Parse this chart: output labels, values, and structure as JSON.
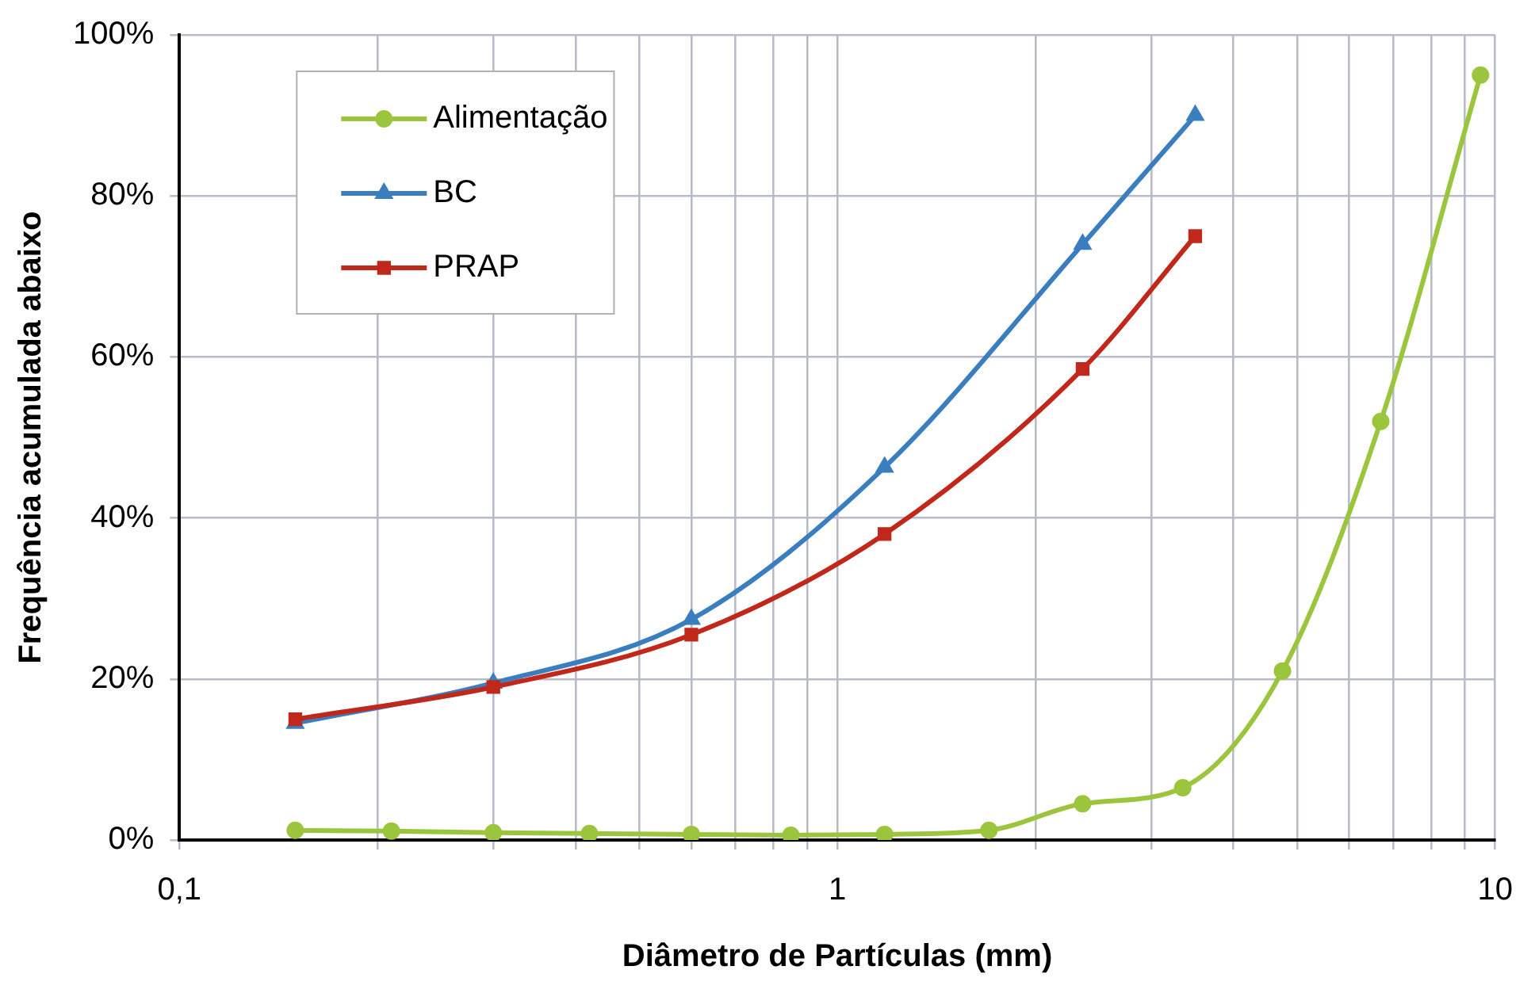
{
  "chart_data": {
    "type": "line",
    "xlabel": "Diâmetro de Partículas (mm)",
    "ylabel": "Frequência acumulada abaixo",
    "x": [
      0.15,
      0.21,
      0.3,
      0.42,
      0.6,
      0.85,
      1.18,
      1.7,
      2.36,
      3.35,
      4.75,
      6.7,
      9.5
    ],
    "series": [
      {
        "name": "Alimentação",
        "color": "#9bc53d",
        "marker": "circle",
        "values": [
          1.2,
          1.1,
          0.9,
          0.8,
          0.7,
          0.6,
          0.7,
          1.2,
          4.5,
          6.5,
          21,
          52,
          95
        ]
      },
      {
        "name": "BC",
        "color": "#3a7ebf",
        "marker": "triangle",
        "x": [
          0.15,
          0.3,
          0.6,
          1.18,
          2.36,
          3.5
        ],
        "values": [
          14.5,
          19.5,
          27.4,
          46.3,
          74,
          90
        ]
      },
      {
        "name": "PRAP",
        "color": "#c0281c",
        "marker": "square",
        "x": [
          0.15,
          0.3,
          0.6,
          1.18,
          2.36,
          3.5
        ],
        "values": [
          15,
          19,
          25.5,
          38,
          58.5,
          75
        ]
      }
    ],
    "log": "x",
    "xlim": [
      0.1,
      10
    ],
    "xticks": [
      {
        "value": 0.1,
        "label": "0,1"
      },
      {
        "value": 0.2,
        "label": null
      },
      {
        "value": 0.3,
        "label": null
      },
      {
        "value": 0.4,
        "label": null
      },
      {
        "value": 0.5,
        "label": null
      },
      {
        "value": 0.6,
        "label": null
      },
      {
        "value": 0.7,
        "label": null
      },
      {
        "value": 0.8,
        "label": null
      },
      {
        "value": 0.9,
        "label": null
      },
      1,
      {
        "value": 2,
        "label": null
      },
      {
        "value": 3,
        "label": null
      },
      {
        "value": 4,
        "label": null
      },
      {
        "value": 5,
        "label": null
      },
      {
        "value": 6,
        "label": null
      },
      {
        "value": 7,
        "label": null
      },
      {
        "value": 8,
        "label": null
      },
      {
        "value": 9,
        "label": null
      },
      10
    ],
    "ylim": [
      0,
      100
    ],
    "yticks": [
      {
        "value": 0,
        "label": "0%"
      },
      {
        "value": 20,
        "label": "20%"
      },
      {
        "value": 40,
        "label": "40%"
      },
      {
        "value": 60,
        "label": "60%"
      },
      {
        "value": 80,
        "label": "80%"
      },
      {
        "value": 100,
        "label": "100%"
      }
    ],
    "grid": true,
    "legend": "top left",
    "line_style": "solid"
  }
}
